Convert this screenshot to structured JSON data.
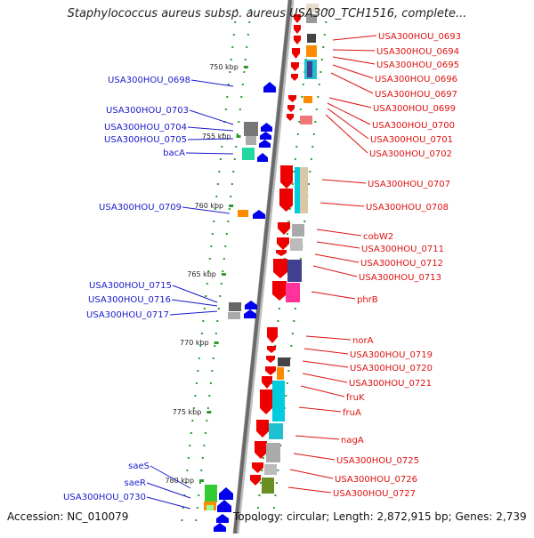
{
  "title": "Staphylococcus aureus subsp. aureus USA300_TCH1516, complete...",
  "accession": "Accession: NC_010079",
  "summary": "Topology: circular; Length: 2,872,915 bp; Genes: 2,739",
  "colors": {
    "left_label": "#1a1acc",
    "right_label": "#dd1111",
    "forward_gene": "#0000ee",
    "reverse_gene": "#ee0000",
    "tick": "#2e9a2e"
  },
  "kbp_ticks": [
    "750 kbp",
    "755 kbp",
    "760 kbp",
    "765 kbp",
    "770 kbp",
    "775 kbp",
    "780 kbp"
  ],
  "left_genes": [
    "USA300HOU_0698",
    "USA300HOU_0703",
    "USA300HOU_0704",
    "USA300HOU_0705",
    "bacA",
    "USA300HOU_0709",
    "USA300HOU_0715",
    "USA300HOU_0716",
    "USA300HOU_0717",
    "saeS",
    "saeR",
    "USA300HOU_0730"
  ],
  "right_genes": [
    "USA300HOU_0693",
    "USA300HOU_0694",
    "USA300HOU_0695",
    "USA300HOU_0696",
    "USA300HOU_0697",
    "USA300HOU_0699",
    "USA300HOU_0700",
    "USA300HOU_0701",
    "USA300HOU_0702",
    "USA300HOU_0707",
    "USA300HOU_0708",
    "cobW2",
    "USA300HOU_0711",
    "USA300HOU_0712",
    "USA300HOU_0713",
    "phrB",
    "norA",
    "USA300HOU_0719",
    "USA300HOU_0720",
    "USA300HOU_0721",
    "fruK",
    "fruA",
    "nagA",
    "USA300HOU_0725",
    "USA300HOU_0726",
    "USA300HOU_0727"
  ]
}
